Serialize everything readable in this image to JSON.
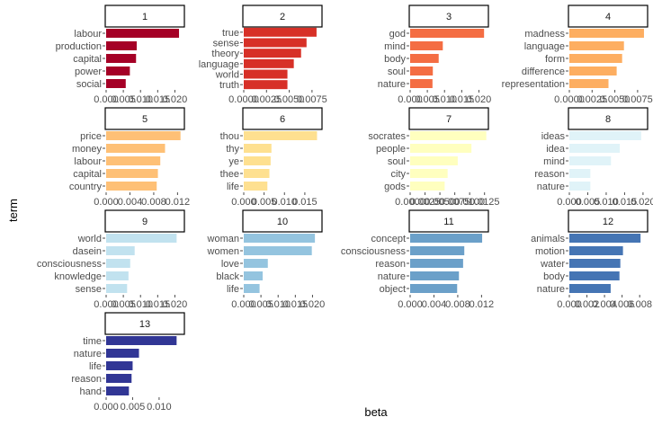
{
  "chart_data": {
    "type": "bar",
    "orientation": "horizontal",
    "layout": "facet grid, 4 columns",
    "xlabel": "beta",
    "ylabel": "term",
    "grid": false,
    "panels": [
      {
        "title": "1",
        "color": "#a50026",
        "xlim": [
          0,
          0.0225
        ],
        "ticks": [
          {
            "v": 0,
            "t": "0.000"
          },
          {
            "v": 0.005,
            "t": "0.005"
          },
          {
            "v": 0.01,
            "t": "0.010"
          },
          {
            "v": 0.015,
            "t": "0.015"
          },
          {
            "v": 0.02,
            "t": "0.020"
          }
        ],
        "terms": [
          "labour",
          "production",
          "capital",
          "power",
          "social"
        ],
        "values": [
          0.0212,
          0.0089,
          0.0087,
          0.0069,
          0.0057
        ]
      },
      {
        "title": "2",
        "color": "#d73027",
        "xlim": [
          0,
          0.0085
        ],
        "ticks": [
          {
            "v": 0,
            "t": "0.0000"
          },
          {
            "v": 0.0025,
            "t": "0.0025"
          },
          {
            "v": 0.005,
            "t": "0.0050"
          },
          {
            "v": 0.0075,
            "t": "0.0075"
          }
        ],
        "terms": [
          "true",
          "sense",
          "theory",
          "language",
          "world",
          "truth"
        ],
        "values": [
          0.008,
          0.0069,
          0.0063,
          0.0055,
          0.0048,
          0.0048
        ]
      },
      {
        "title": "3",
        "color": "#f46d43",
        "xlim": [
          0,
          0.0225
        ],
        "ticks": [
          {
            "v": 0,
            "t": "0.000"
          },
          {
            "v": 0.005,
            "t": "0.005"
          },
          {
            "v": 0.01,
            "t": "0.010"
          },
          {
            "v": 0.015,
            "t": "0.015"
          },
          {
            "v": 0.02,
            "t": "0.020"
          }
        ],
        "terms": [
          "god",
          "mind",
          "body",
          "soul",
          "nature"
        ],
        "values": [
          0.0215,
          0.0095,
          0.0083,
          0.0066,
          0.0065
        ]
      },
      {
        "title": "4",
        "color": "#fdae61",
        "xlim": [
          0,
          0.0085
        ],
        "ticks": [
          {
            "v": 0,
            "t": "0.0000"
          },
          {
            "v": 0.0025,
            "t": "0.0025"
          },
          {
            "v": 0.005,
            "t": "0.0050"
          },
          {
            "v": 0.0075,
            "t": "0.0075"
          }
        ],
        "terms": [
          "madness",
          "language",
          "form",
          "difference",
          "representation"
        ],
        "values": [
          0.0082,
          0.006,
          0.0058,
          0.0052,
          0.0043
        ]
      },
      {
        "title": "5",
        "color": "#fec076",
        "xlim": [
          0,
          0.013
        ],
        "ticks": [
          {
            "v": 0,
            "t": "0.000"
          },
          {
            "v": 0.004,
            "t": "0.004"
          },
          {
            "v": 0.008,
            "t": "0.008"
          },
          {
            "v": 0.012,
            "t": "0.012"
          }
        ],
        "terms": [
          "price",
          "money",
          "labour",
          "capital",
          "country"
        ],
        "values": [
          0.0125,
          0.0099,
          0.0091,
          0.0087,
          0.0085
        ]
      },
      {
        "title": "6",
        "color": "#fee090",
        "xlim": [
          0,
          0.019
        ],
        "ticks": [
          {
            "v": 0,
            "t": "0.000"
          },
          {
            "v": 0.005,
            "t": "0.005"
          },
          {
            "v": 0.01,
            "t": "0.010"
          },
          {
            "v": 0.015,
            "t": "0.015"
          }
        ],
        "terms": [
          "thou",
          "thy",
          "ye",
          "thee",
          "life"
        ],
        "values": [
          0.018,
          0.0068,
          0.0066,
          0.0063,
          0.0058
        ]
      },
      {
        "title": "7",
        "color": "#ffffbf",
        "xlim": [
          0,
          0.013
        ],
        "ticks": [
          {
            "v": 0,
            "t": "0.0000"
          },
          {
            "v": 0.0025,
            "t": "0.0025"
          },
          {
            "v": 0.005,
            "t": "0.0050"
          },
          {
            "v": 0.0075,
            "t": "0.0075"
          },
          {
            "v": 0.01,
            "t": "0.0100"
          },
          {
            "v": 0.0125,
            "t": "0.0125"
          }
        ],
        "terms": [
          "socrates",
          "people",
          "soul",
          "city",
          "gods"
        ],
        "values": [
          0.0128,
          0.0103,
          0.008,
          0.0063,
          0.0058
        ]
      },
      {
        "title": "8",
        "color": "#e0f3f8",
        "xlim": [
          0,
          0.021
        ],
        "ticks": [
          {
            "v": 0,
            "t": "0.000"
          },
          {
            "v": 0.005,
            "t": "0.005"
          },
          {
            "v": 0.01,
            "t": "0.010"
          },
          {
            "v": 0.015,
            "t": "0.015"
          },
          {
            "v": 0.02,
            "t": "0.020"
          }
        ],
        "terms": [
          "ideas",
          "idea",
          "mind",
          "reason",
          "nature"
        ],
        "values": [
          0.0195,
          0.0137,
          0.0113,
          0.0057,
          0.0057
        ]
      },
      {
        "title": "9",
        "color": "#c1e2ef",
        "xlim": [
          0,
          0.0225
        ],
        "ticks": [
          {
            "v": 0,
            "t": "0.000"
          },
          {
            "v": 0.005,
            "t": "0.005"
          },
          {
            "v": 0.01,
            "t": "0.010"
          },
          {
            "v": 0.015,
            "t": "0.015"
          },
          {
            "v": 0.02,
            "t": "0.020"
          }
        ],
        "terms": [
          "world",
          "dasein",
          "consciousness",
          "knowledge",
          "sense"
        ],
        "values": [
          0.0205,
          0.0083,
          0.007,
          0.0065,
          0.0061
        ]
      },
      {
        "title": "10",
        "color": "#94c4df",
        "xlim": [
          0,
          0.0225
        ],
        "ticks": [
          {
            "v": 0,
            "t": "0.000"
          },
          {
            "v": 0.005,
            "t": "0.005"
          },
          {
            "v": 0.01,
            "t": "0.010"
          },
          {
            "v": 0.015,
            "t": "0.015"
          },
          {
            "v": 0.02,
            "t": "0.020"
          }
        ],
        "terms": [
          "woman",
          "women",
          "love",
          "black",
          "life"
        ],
        "values": [
          0.0207,
          0.0198,
          0.007,
          0.0055,
          0.0046
        ]
      },
      {
        "title": "11",
        "color": "#6ba0c9",
        "xlim": [
          0,
          0.013
        ],
        "ticks": [
          {
            "v": 0,
            "t": "0.000"
          },
          {
            "v": 0.004,
            "t": "0.004"
          },
          {
            "v": 0.008,
            "t": "0.008"
          },
          {
            "v": 0.012,
            "t": "0.012"
          }
        ],
        "terms": [
          "concept",
          "consciousness",
          "reason",
          "nature",
          "object"
        ],
        "values": [
          0.0121,
          0.0091,
          0.0089,
          0.0082,
          0.0079
        ]
      },
      {
        "title": "12",
        "color": "#4575b4",
        "xlim": [
          0,
          0.0088
        ],
        "ticks": [
          {
            "v": 0,
            "t": "0.000"
          },
          {
            "v": 0.002,
            "t": "0.002"
          },
          {
            "v": 0.004,
            "t": "0.004"
          },
          {
            "v": 0.006,
            "t": "0.006"
          },
          {
            "v": 0.008,
            "t": "0.008"
          }
        ],
        "terms": [
          "animals",
          "motion",
          "water",
          "body",
          "nature"
        ],
        "values": [
          0.0081,
          0.0061,
          0.0058,
          0.0057,
          0.0047
        ]
      },
      {
        "title": "13",
        "color": "#313695",
        "xlim": [
          0,
          0.0146
        ],
        "ticks": [
          {
            "v": 0,
            "t": "0.000"
          },
          {
            "v": 0.005,
            "t": "0.005"
          },
          {
            "v": 0.01,
            "t": "0.010"
          }
        ],
        "terms": [
          "time",
          "nature",
          "life",
          "reason",
          "hand"
        ],
        "values": [
          0.0133,
          0.0062,
          0.005,
          0.0048,
          0.0043
        ]
      }
    ]
  }
}
